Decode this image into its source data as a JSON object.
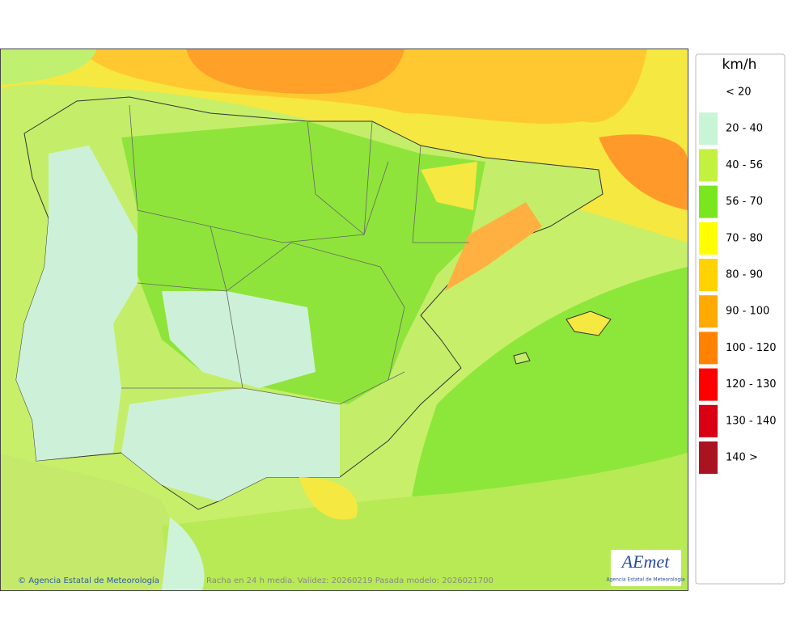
{
  "map": {
    "credit": "Agencia Estatal de Meteorología",
    "caption": "Racha en 24 h media. Validez: 20260219 Pasada modelo: 2026021700",
    "logo": {
      "name": "AEmet",
      "subtitle": "Agencia Estatal de Meteorología"
    }
  },
  "legend": {
    "unit": "km/h",
    "items": [
      {
        "label": "< 20",
        "color": "#ffffff"
      },
      {
        "label": "20 - 40",
        "color": "#c8f5d6"
      },
      {
        "label": "40 - 56",
        "color": "#c2f23f"
      },
      {
        "label": "56 - 70",
        "color": "#7ae61e"
      },
      {
        "label": "70 - 80",
        "color": "#ffff00"
      },
      {
        "label": "80 - 90",
        "color": "#ffd200"
      },
      {
        "label": "90 - 100",
        "color": "#ffaa00"
      },
      {
        "label": "100 - 120",
        "color": "#ff8200"
      },
      {
        "label": "120 - 130",
        "color": "#ff0000"
      },
      {
        "label": "130 - 140",
        "color": "#d80012"
      },
      {
        "label": "140 >",
        "color": "#aa1420"
      }
    ]
  }
}
